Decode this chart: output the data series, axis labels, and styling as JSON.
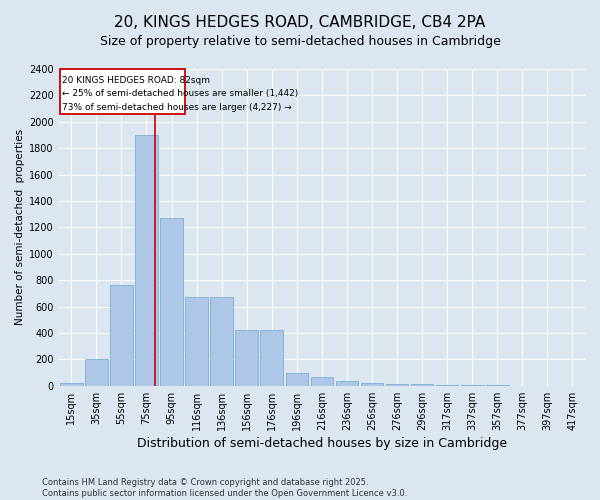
{
  "title1": "20, KINGS HEDGES ROAD, CAMBRIDGE, CB4 2PA",
  "title2": "Size of property relative to semi-detached houses in Cambridge",
  "xlabel": "Distribution of semi-detached houses by size in Cambridge",
  "ylabel": "Number of semi-detached  properties",
  "categories": [
    "15sqm",
    "35sqm",
    "55sqm",
    "75sqm",
    "95sqm",
    "116sqm",
    "136sqm",
    "156sqm",
    "176sqm",
    "196sqm",
    "216sqm",
    "236sqm",
    "256sqm",
    "276sqm",
    "296sqm",
    "317sqm",
    "337sqm",
    "357sqm",
    "377sqm",
    "397sqm",
    "417sqm"
  ],
  "values": [
    20,
    200,
    760,
    1900,
    1270,
    670,
    670,
    420,
    420,
    100,
    65,
    35,
    20,
    15,
    10,
    8,
    5,
    3,
    2,
    1,
    0
  ],
  "bar_color": "#aec6e8",
  "bar_edge_color": "#7aafd4",
  "annotation_line1": "20 KINGS HEDGES ROAD: 82sqm",
  "annotation_line2": "← 25% of semi-detached houses are smaller (1,442)",
  "annotation_line3": "73% of semi-detached houses are larger (4,227) →",
  "vline_color": "#cc0000",
  "annotation_box_edge": "#cc0000",
  "footer1": "Contains HM Land Registry data © Crown copyright and database right 2025.",
  "footer2": "Contains public sector information licensed under the Open Government Licence v3.0.",
  "bg_color": "#dce6f0",
  "ylim": [
    0,
    2400
  ],
  "title1_fontsize": 11,
  "title2_fontsize": 9,
  "xlabel_fontsize": 9,
  "ylabel_fontsize": 7.5,
  "tick_fontsize": 7,
  "footer_fontsize": 6,
  "vline_x": 3.35
}
